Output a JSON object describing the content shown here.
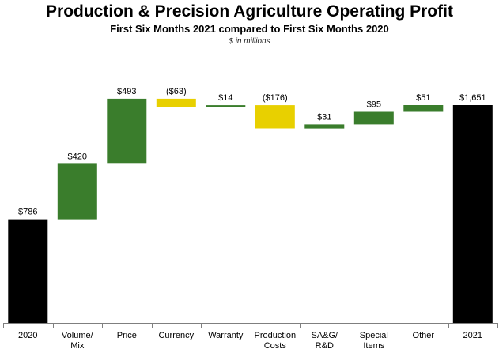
{
  "title": "Production & Precision Agriculture Operating Profit",
  "subtitle": "First Six Months 2021 compared to First Six Months 2020",
  "unit_note": "$ in millions",
  "colors": {
    "total": "#000000",
    "increase": "#3a7d2c",
    "decrease": "#e8d000"
  },
  "chart_data": {
    "type": "bar",
    "subtype": "waterfall",
    "title": "Production & Precision Agriculture Operating Profit",
    "subtitle": "First Six Months 2021 compared to First Six Months 2020",
    "ylabel": "",
    "xlabel": "",
    "ylim": [
      0,
      1750
    ],
    "grid": false,
    "categories": [
      "2020",
      "Volume/ Mix",
      "Price",
      "Currency",
      "Warranty",
      "Production Costs",
      "SA&G/ R&D",
      "Special Items",
      "Other",
      "2021"
    ],
    "category_lines": [
      [
        "2020"
      ],
      [
        "Volume/",
        "Mix"
      ],
      [
        "Price"
      ],
      [
        "Currency"
      ],
      [
        "Warranty"
      ],
      [
        "Production",
        "Costs"
      ],
      [
        "SA&G/",
        "R&D"
      ],
      [
        "Special",
        "Items"
      ],
      [
        "Other"
      ],
      [
        "2021"
      ]
    ],
    "values": [
      786,
      420,
      493,
      -63,
      14,
      -176,
      31,
      95,
      51,
      1651
    ],
    "kinds": [
      "total",
      "increase",
      "increase",
      "decrease",
      "increase",
      "decrease",
      "increase",
      "increase",
      "increase",
      "total"
    ],
    "data_labels": [
      "$786",
      "$420",
      "$493",
      "($63)",
      "$14",
      "($176)",
      "$31",
      "$95",
      "$51",
      "$1,651"
    ]
  }
}
